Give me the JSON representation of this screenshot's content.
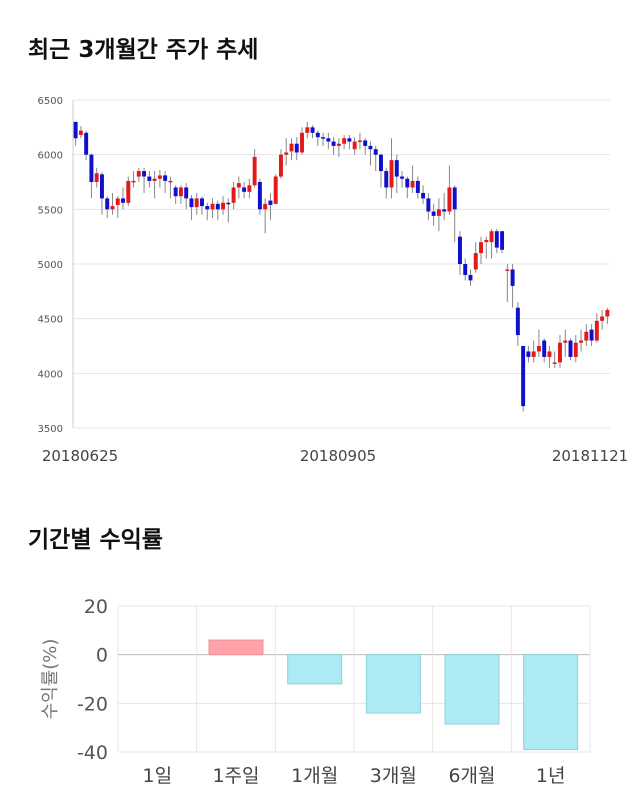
{
  "section1": {
    "title": "최근 3개월간 주가 추세"
  },
  "section2": {
    "title": "기간별 수익률"
  },
  "chart_data": [
    {
      "type": "candlestick",
      "title": "최근 3개월간 주가 추세",
      "y_ticks": [
        3500,
        4000,
        4500,
        5000,
        5500,
        6000,
        6500
      ],
      "ylim": [
        3500,
        6500
      ],
      "x_labels": [
        "20180625",
        "20180905",
        "20181121"
      ],
      "grid": true,
      "up_color": "#e31a1c",
      "down_color": "#1010cc",
      "candles": [
        [
          6300,
          6150,
          6300,
          6080
        ],
        [
          6180,
          6220,
          6260,
          6150
        ],
        [
          6200,
          6000,
          6220,
          5950
        ],
        [
          6000,
          5750,
          6010,
          5600
        ],
        [
          5750,
          5830,
          5880,
          5700
        ],
        [
          5820,
          5600,
          5840,
          5450
        ],
        [
          5600,
          5500,
          5620,
          5420
        ],
        [
          5500,
          5530,
          5650,
          5450
        ],
        [
          5540,
          5600,
          5620,
          5420
        ],
        [
          5600,
          5560,
          5700,
          5500
        ],
        [
          5560,
          5760,
          5800,
          5530
        ],
        [
          5760,
          5760,
          5850,
          5700
        ],
        [
          5800,
          5850,
          5880,
          5750
        ],
        [
          5850,
          5800,
          5880,
          5650
        ],
        [
          5800,
          5760,
          5850,
          5700
        ],
        [
          5760,
          5780,
          5850,
          5600
        ],
        [
          5780,
          5810,
          5860,
          5700
        ],
        [
          5810,
          5760,
          5850,
          5650
        ],
        [
          5760,
          5760,
          5800,
          5600
        ],
        [
          5700,
          5620,
          5720,
          5550
        ],
        [
          5620,
          5700,
          5720,
          5550
        ],
        [
          5700,
          5600,
          5740,
          5500
        ],
        [
          5600,
          5520,
          5630,
          5400
        ],
        [
          5520,
          5600,
          5650,
          5450
        ],
        [
          5600,
          5530,
          5620,
          5450
        ],
        [
          5530,
          5500,
          5560,
          5400
        ],
        [
          5500,
          5550,
          5600,
          5420
        ],
        [
          5550,
          5500,
          5580,
          5400
        ],
        [
          5500,
          5560,
          5620,
          5450
        ],
        [
          5560,
          5550,
          5600,
          5380
        ],
        [
          5560,
          5700,
          5750,
          5500
        ],
        [
          5700,
          5740,
          5800,
          5600
        ],
        [
          5700,
          5660,
          5750,
          5600
        ],
        [
          5660,
          5720,
          5780,
          5600
        ],
        [
          5720,
          5980,
          6050,
          5700
        ],
        [
          5750,
          5500,
          5780,
          5450
        ],
        [
          5500,
          5550,
          5600,
          5280
        ],
        [
          5580,
          5540,
          5650,
          5400
        ],
        [
          5550,
          5800,
          5820,
          5550
        ],
        [
          5800,
          6000,
          6050,
          5780
        ],
        [
          6000,
          6020,
          6150,
          5900
        ],
        [
          6030,
          6100,
          6150,
          5950
        ],
        [
          6100,
          6020,
          6160,
          5950
        ],
        [
          6020,
          6200,
          6250,
          6000
        ],
        [
          6200,
          6250,
          6300,
          6150
        ],
        [
          6250,
          6200,
          6270,
          6150
        ],
        [
          6200,
          6160,
          6220,
          6080
        ],
        [
          6160,
          6150,
          6200,
          6080
        ],
        [
          6150,
          6120,
          6200,
          6050
        ],
        [
          6120,
          6080,
          6160,
          6000
        ],
        [
          6080,
          6100,
          6150,
          5980
        ],
        [
          6100,
          6150,
          6180,
          6050
        ],
        [
          6150,
          6120,
          6180,
          6050
        ],
        [
          6050,
          6120,
          6160,
          6000
        ],
        [
          6120,
          6130,
          6200,
          6050
        ],
        [
          6130,
          6080,
          6150,
          6000
        ],
        [
          6080,
          6050,
          6120,
          5900
        ],
        [
          6050,
          6000,
          6080,
          5850
        ],
        [
          6000,
          5850,
          6010,
          5700
        ],
        [
          5850,
          5700,
          5880,
          5600
        ],
        [
          5700,
          5950,
          6150,
          5600
        ],
        [
          5950,
          5800,
          6000,
          5650
        ],
        [
          5800,
          5780,
          5850,
          5700
        ],
        [
          5780,
          5700,
          5800,
          5600
        ],
        [
          5700,
          5760,
          5900,
          5650
        ],
        [
          5760,
          5650,
          5800,
          5600
        ],
        [
          5650,
          5600,
          5720,
          5550
        ],
        [
          5600,
          5480,
          5650,
          5400
        ],
        [
          5480,
          5440,
          5550,
          5350
        ],
        [
          5440,
          5500,
          5600,
          5300
        ],
        [
          5500,
          5480,
          5650,
          5400
        ],
        [
          5480,
          5700,
          5900,
          5450
        ],
        [
          5700,
          5500,
          5720,
          5200
        ],
        [
          5250,
          5000,
          5300,
          4900
        ],
        [
          5000,
          4900,
          5050,
          4850
        ],
        [
          4900,
          4850,
          4950,
          4800
        ],
        [
          4950,
          5100,
          5200,
          4920
        ],
        [
          5100,
          5200,
          5250,
          5000
        ],
        [
          5200,
          5220,
          5250,
          5050
        ],
        [
          5200,
          5300,
          5320,
          5050
        ],
        [
          5300,
          5150,
          5320,
          5100
        ],
        [
          5300,
          5130,
          5300,
          5100
        ],
        [
          4950,
          4950,
          5000,
          4650
        ],
        [
          4950,
          4800,
          5000,
          4600
        ],
        [
          4600,
          4350,
          4650,
          4250
        ],
        [
          4250,
          3700,
          4250,
          3650
        ],
        [
          4200,
          4150,
          4250,
          4100
        ],
        [
          4150,
          4200,
          4300,
          4100
        ],
        [
          4200,
          4250,
          4400,
          4150
        ],
        [
          4300,
          4150,
          4320,
          4100
        ],
        [
          4150,
          4200,
          4250,
          4050
        ],
        [
          4100,
          4100,
          4200,
          4050
        ],
        [
          4100,
          4280,
          4350,
          4050
        ],
        [
          4280,
          4300,
          4400,
          4150
        ],
        [
          4300,
          4150,
          4320,
          4120
        ],
        [
          4150,
          4280,
          4350,
          4100
        ],
        [
          4280,
          4300,
          4400,
          4200
        ],
        [
          4300,
          4380,
          4450,
          4250
        ],
        [
          4400,
          4300,
          4450,
          4250
        ],
        [
          4300,
          4480,
          4550,
          4280
        ],
        [
          4480,
          4520,
          4580,
          4400
        ],
        [
          4520,
          4580,
          4600,
          4450
        ]
      ]
    },
    {
      "type": "bar",
      "title": "기간별 수익률",
      "ylabel": "수익률(%)",
      "categories": [
        "1일",
        "1주일",
        "1개월",
        "3개월",
        "6개월",
        "1년"
      ],
      "values": [
        0,
        6,
        -12,
        -24,
        -28.5,
        -39
      ],
      "ylim": [
        -40,
        20
      ],
      "y_ticks": [
        20,
        0,
        -20,
        -40
      ],
      "grid": true,
      "positive_color": "#ffa3ab",
      "negative_color": "#aeeaf3",
      "negative_border": "#8fd0dc"
    }
  ]
}
